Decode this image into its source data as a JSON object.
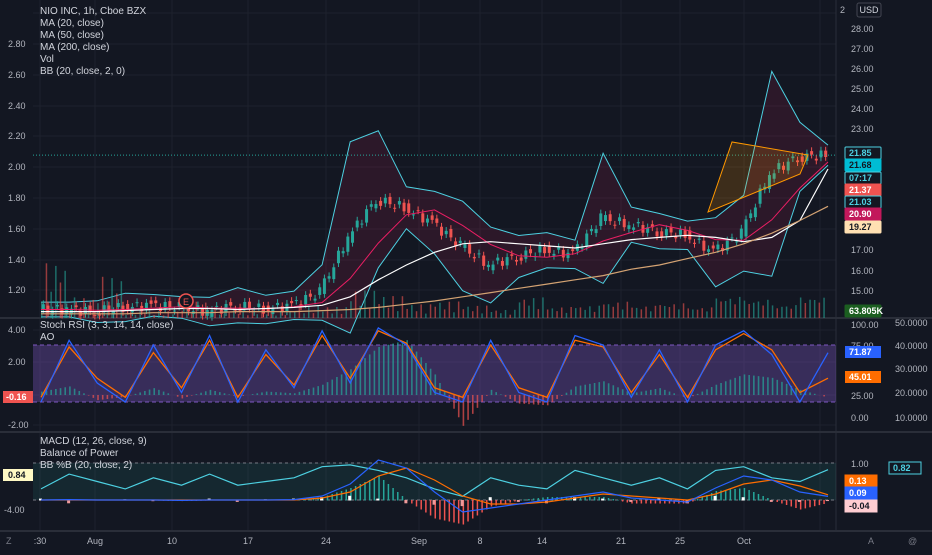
{
  "header": {
    "title": "NIO INC, 1h, Cboe BZX",
    "currency": "USD",
    "corner_price": "2"
  },
  "colors": {
    "bg": "#131722",
    "grid": "#1e222d",
    "axis_text": "#b2b5be",
    "up": "#26a69a",
    "down": "#ef5350",
    "bb": "#4dd0e1",
    "ma20": "#e91e63",
    "ma50": "#ffffff",
    "ma200": "#d4a373",
    "rsi_k": "#2962ff",
    "rsi_d": "#ff6d00",
    "macd": "#2962ff",
    "signal": "#ff6d00",
    "bop": "#4dd0e1",
    "purple": "#7e57c2"
  },
  "x_axis": {
    "labels": [
      ":30",
      "Aug",
      "10",
      "17",
      "24",
      "Sep",
      "8",
      "14",
      "21",
      "25",
      "Oct"
    ]
  },
  "corner_labels": {
    "bottom_left": "Z",
    "bottom_right_a": "A",
    "bottom_right_b": "@"
  },
  "main_pane": {
    "legend": [
      "NIO INC, 1h, Cboe BZX",
      "MA (20, close)",
      "MA (50, close)",
      "MA (200, close)",
      "Vol",
      "BB (20, close, 2, 0)"
    ],
    "left_ticks": [
      "2.80",
      "2.60",
      "2.40",
      "2.20",
      "2.00",
      "1.80",
      "1.60",
      "1.40",
      "1.20"
    ],
    "right_ticks": [
      "28.00",
      "27.00",
      "26.00",
      "25.00",
      "24.00",
      "23.00",
      "17.00",
      "16.00",
      "15.00",
      "14.00"
    ],
    "price_tags": [
      {
        "text": "21.85",
        "bg": "#131722",
        "fg": "#4dd0e1",
        "border": "#4dd0e1"
      },
      {
        "text": "21.68",
        "bg": "#00bcd4",
        "fg": "#131722",
        "border": "#00bcd4"
      },
      {
        "text": "07:17",
        "bg": "#131722",
        "fg": "#4dd0e1",
        "border": "#4dd0e1"
      },
      {
        "text": "21.37",
        "bg": "#ef5350",
        "fg": "#ffffff",
        "border": "#ef5350"
      },
      {
        "text": "21.03",
        "bg": "#131722",
        "fg": "#4dd0e1",
        "border": "#4dd0e1"
      },
      {
        "text": "20.90",
        "bg": "#c2185b",
        "fg": "#ffffff",
        "border": "#c2185b"
      },
      {
        "text": "19.27",
        "bg": "#ffe0b2",
        "fg": "#131722",
        "border": "#ffe0b2"
      },
      {
        "text": "63.805K",
        "bg": "#1b5e20",
        "fg": "#ffffff",
        "border": "#1b5e20"
      }
    ],
    "earnings_marker": "E"
  },
  "rsi_pane": {
    "legend": [
      "Stoch RSI (3, 3, 14, 14, close)",
      "AO"
    ],
    "left_ticks": [
      "4.00",
      "2.00",
      "-2.00"
    ],
    "left_tag": "-0.16",
    "mid_ticks": [
      "100.00",
      "75.00",
      "25.00",
      "0.00"
    ],
    "right_ticks": [
      "50.0000",
      "40.0000",
      "30.0000",
      "20.0000",
      "10.0000"
    ],
    "tags": [
      {
        "text": "71.87",
        "bg": "#2962ff",
        "fg": "#ffffff"
      },
      {
        "text": "45.01",
        "bg": "#ff6d00",
        "fg": "#ffffff"
      }
    ]
  },
  "macd_pane": {
    "legend": [
      "MACD (12, 26, close, 9)",
      "Balance of Power",
      "BB %B (20, close, 2)"
    ],
    "left_ticks": [
      "-4.00"
    ],
    "left_tag": "0.84",
    "mid_ticks": [
      "1.00",
      "0.00"
    ],
    "tags": [
      {
        "text": "0.82",
        "bg": "#131722",
        "fg": "#4dd0e1",
        "border": "#4dd0e1"
      },
      {
        "text": "0.13",
        "bg": "#ff6d00",
        "fg": "#ffffff",
        "border": "#ff6d00"
      },
      {
        "text": "0.09",
        "bg": "#2962ff",
        "fg": "#ffffff",
        "border": "#2962ff"
      },
      {
        "text": "-0.04",
        "bg": "#ffcdd2",
        "fg": "#131722",
        "border": "#ffcdd2"
      }
    ]
  },
  "chart_data": {
    "type": "line",
    "symbol": "NIO INC",
    "interval": "1h",
    "exchange": "Cboe BZX",
    "currency": "USD",
    "price_ylim": [
      14.0,
      29.0
    ],
    "indicator_lines": [
      {
        "name": "MA (20, close)",
        "value": 20.9
      },
      {
        "name": "MA (200, close)",
        "value": 19.27
      }
    ],
    "x_dates": [
      ":30",
      "Aug",
      "",
      "",
      "10",
      "",
      "",
      "17",
      "",
      "",
      "24",
      "",
      "",
      "Sep",
      "",
      "",
      "8",
      "",
      "",
      "14",
      "",
      "",
      "21",
      "",
      "",
      "25",
      "",
      "Oct",
      ""
    ],
    "close": [
      14.4,
      14.4,
      14.3,
      14.5,
      14.6,
      14.5,
      14.3,
      14.6,
      14.4,
      14.6,
      15.2,
      17.8,
      19.6,
      19.2,
      18.5,
      17.4,
      16.5,
      16.9,
      17.2,
      17.0,
      18.7,
      18.4,
      18.1,
      17.9,
      17.1,
      18.0,
      20.8,
      21.6,
      21.68
    ],
    "ma50": [
      14.3,
      14.3,
      14.3,
      14.35,
      14.4,
      14.45,
      14.45,
      14.4,
      14.45,
      14.5,
      14.6,
      15.0,
      15.8,
      16.5,
      17.1,
      17.5,
      17.6,
      17.5,
      17.4,
      17.3,
      17.5,
      17.7,
      17.8,
      17.9,
      17.8,
      17.6,
      17.8,
      18.6,
      21.03
    ],
    "ma200": [
      14.2,
      14.2,
      14.2,
      14.2,
      14.25,
      14.25,
      14.25,
      14.3,
      14.3,
      14.3,
      14.35,
      14.4,
      14.5,
      14.65,
      14.8,
      15.0,
      15.2,
      15.4,
      15.6,
      15.8,
      16.0,
      16.3,
      16.5,
      16.8,
      17.1,
      17.5,
      18.0,
      18.6,
      19.27
    ],
    "volume": [
      4.0,
      1.5,
      3.0,
      0.6,
      0.5,
      1.2,
      0.8,
      0.6,
      0.5,
      0.9,
      0.8,
      2.0,
      1.6,
      1.0,
      1.2,
      0.9,
      0.6,
      1.5,
      0.8,
      0.9,
      1.2,
      0.9,
      1.1,
      0.8,
      1.6,
      1.4,
      1.0,
      1.6,
      0.6
    ],
    "stoch_rsi_k": [
      20,
      85,
      40,
      20,
      80,
      30,
      90,
      20,
      75,
      35,
      95,
      40,
      98,
      80,
      30,
      20,
      85,
      30,
      20,
      90,
      80,
      25,
      75,
      20,
      80,
      95,
      70,
      20,
      71.87
    ],
    "stoch_rsi_d": [
      25,
      78,
      45,
      25,
      72,
      35,
      85,
      25,
      70,
      38,
      90,
      45,
      95,
      82,
      35,
      25,
      80,
      35,
      25,
      85,
      78,
      30,
      70,
      25,
      75,
      92,
      75,
      30,
      45.01
    ],
    "ao": [
      0.2,
      0.5,
      -0.3,
      -0.1,
      0.4,
      -0.2,
      0.3,
      -0.1,
      0.2,
      0.1,
      0.6,
      1.5,
      2.8,
      3.2,
      1.2,
      -1.8,
      0.3,
      -0.5,
      -0.6,
      0.5,
      0.8,
      0.1,
      0.4,
      -0.2,
      0.6,
      1.2,
      1.0,
      0.3,
      -0.16
    ],
    "macd": [
      0.0,
      0.01,
      0.0,
      0.0,
      0.0,
      -0.01,
      0.0,
      0.0,
      0.0,
      0.01,
      0.1,
      0.4,
      1.0,
      0.8,
      0.2,
      -0.3,
      -0.2,
      -0.1,
      0.0,
      0.1,
      0.2,
      0.05,
      0.0,
      -0.05,
      0.3,
      0.6,
      0.5,
      0.2,
      0.09
    ],
    "signal": [
      0.0,
      0.0,
      0.0,
      0.0,
      0.0,
      0.0,
      0.0,
      0.0,
      0.0,
      0.0,
      0.05,
      0.2,
      0.6,
      0.8,
      0.5,
      0.1,
      -0.1,
      -0.1,
      -0.05,
      0.05,
      0.15,
      0.1,
      0.05,
      0.0,
      0.15,
      0.4,
      0.5,
      0.35,
      0.13
    ],
    "bb_percent_b": [
      0.3,
      0.7,
      0.5,
      0.3,
      0.6,
      0.4,
      0.7,
      0.4,
      0.5,
      0.6,
      0.9,
      0.95,
      0.8,
      0.6,
      0.3,
      0.1,
      0.6,
      0.4,
      0.3,
      0.8,
      0.6,
      0.4,
      0.6,
      0.3,
      0.8,
      0.9,
      0.6,
      0.5,
      0.82
    ],
    "bop": [
      0.1,
      -0.2,
      0.0,
      0.05,
      -0.05,
      0.0,
      0.1,
      -0.1,
      0.05,
      0.1,
      0.2,
      0.3,
      0.1,
      -0.2,
      -0.3,
      -0.4,
      0.2,
      -0.1,
      -0.2,
      0.2,
      0.1,
      -0.1,
      0.1,
      -0.2,
      0.3,
      0.2,
      -0.1,
      -0.1,
      -0.04
    ],
    "legend_placement": "top-left",
    "grid": true
  }
}
